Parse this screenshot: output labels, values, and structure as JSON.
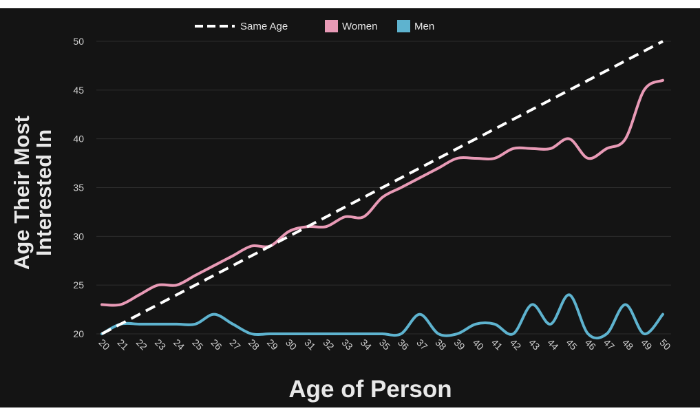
{
  "chart_data": {
    "type": "line",
    "xlabel": "Age of Person",
    "ylabel_lines": [
      "Age Their Most",
      "Interested In"
    ],
    "x": [
      20,
      21,
      22,
      23,
      24,
      25,
      26,
      27,
      28,
      29,
      30,
      31,
      32,
      33,
      34,
      35,
      36,
      37,
      38,
      39,
      40,
      41,
      42,
      43,
      44,
      45,
      46,
      47,
      48,
      49,
      50
    ],
    "xlim": [
      20,
      50
    ],
    "ylim": [
      20,
      50
    ],
    "yticks": [
      20,
      25,
      30,
      35,
      40,
      45,
      50
    ],
    "grid": true,
    "legend_position": "top",
    "series": [
      {
        "name": "Same Age",
        "style": "dashed",
        "color": "#ffffff",
        "values": [
          20,
          21,
          22,
          23,
          24,
          25,
          26,
          27,
          28,
          29,
          30,
          31,
          32,
          33,
          34,
          35,
          36,
          37,
          38,
          39,
          40,
          41,
          42,
          43,
          44,
          45,
          46,
          47,
          48,
          49,
          50
        ]
      },
      {
        "name": "Women",
        "style": "solid",
        "color": "#e89ab6",
        "values": [
          23,
          23,
          24,
          25,
          25,
          26,
          27,
          28,
          29,
          29,
          30.5,
          31,
          31,
          32,
          32,
          34,
          35,
          36,
          37,
          38,
          38,
          38,
          39,
          39,
          39,
          40,
          38,
          39,
          40,
          45,
          46
        ]
      },
      {
        "name": "Men",
        "style": "solid",
        "color": "#5eb3cf",
        "values": [
          20,
          21,
          21,
          21,
          21,
          21,
          22,
          21,
          20,
          20,
          20,
          20,
          20,
          20,
          20,
          20,
          20,
          22,
          20,
          20,
          21,
          21,
          20,
          23,
          21,
          24,
          20,
          20,
          23,
          20,
          22
        ]
      }
    ]
  }
}
